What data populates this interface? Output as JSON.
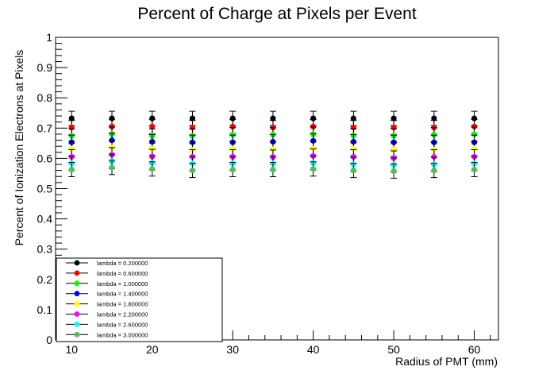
{
  "chart_data": {
    "type": "scatter",
    "title": "Percent of Charge at Pixels per Event",
    "xlabel": "Radius of PMT (mm)",
    "ylabel": "Percent of Ionization Electrons at Pixels",
    "xlim": [
      8,
      63
    ],
    "ylim": [
      0,
      1
    ],
    "x_ticks": [
      10,
      20,
      30,
      40,
      50,
      60
    ],
    "y_ticks": [
      0,
      0.1,
      0.2,
      0.3,
      0.4,
      0.5,
      0.6,
      0.7,
      0.8,
      0.9,
      1
    ],
    "legend_position": "bottom-left",
    "error_bars": true,
    "x": [
      10,
      15,
      20,
      25,
      30,
      35,
      40,
      45,
      50,
      55,
      60
    ],
    "series": [
      {
        "name": "lambda = 0.200000",
        "color": "#000000",
        "values": [
          0.732,
          0.732,
          0.732,
          0.732,
          0.732,
          0.732,
          0.732,
          0.732,
          0.732,
          0.732,
          0.732
        ]
      },
      {
        "name": "lambda = 0.600000",
        "color": "#ff0000",
        "values": [
          0.702,
          0.705,
          0.705,
          0.702,
          0.705,
          0.702,
          0.705,
          0.702,
          0.702,
          0.702,
          0.705
        ]
      },
      {
        "name": "lambda = 1.000000",
        "color": "#00ff00",
        "values": [
          0.674,
          0.68,
          0.674,
          0.674,
          0.678,
          0.678,
          0.68,
          0.675,
          0.675,
          0.678,
          0.68
        ]
      },
      {
        "name": "lambda = 1.400000",
        "color": "#0000ff",
        "values": [
          0.653,
          0.66,
          0.655,
          0.653,
          0.653,
          0.655,
          0.658,
          0.655,
          0.653,
          0.653,
          0.653
        ]
      },
      {
        "name": "lambda = 1.800000",
        "color": "#ffff00",
        "values": [
          0.632,
          0.636,
          0.632,
          0.628,
          0.632,
          0.63,
          0.632,
          0.632,
          0.63,
          0.628,
          0.632
        ]
      },
      {
        "name": "lambda = 2.200000",
        "color": "#ff00ff",
        "values": [
          0.605,
          0.612,
          0.606,
          0.605,
          0.605,
          0.604,
          0.608,
          0.605,
          0.601,
          0.605,
          0.605
        ]
      },
      {
        "name": "lambda = 2.600000",
        "color": "#00ffff",
        "values": [
          0.583,
          0.59,
          0.585,
          0.583,
          0.583,
          0.583,
          0.585,
          0.58,
          0.578,
          0.58,
          0.583
        ]
      },
      {
        "name": "lambda = 3.000000",
        "color": "#4fc055",
        "values": [
          0.563,
          0.57,
          0.565,
          0.56,
          0.563,
          0.563,
          0.565,
          0.56,
          0.558,
          0.56,
          0.563
        ]
      }
    ]
  }
}
